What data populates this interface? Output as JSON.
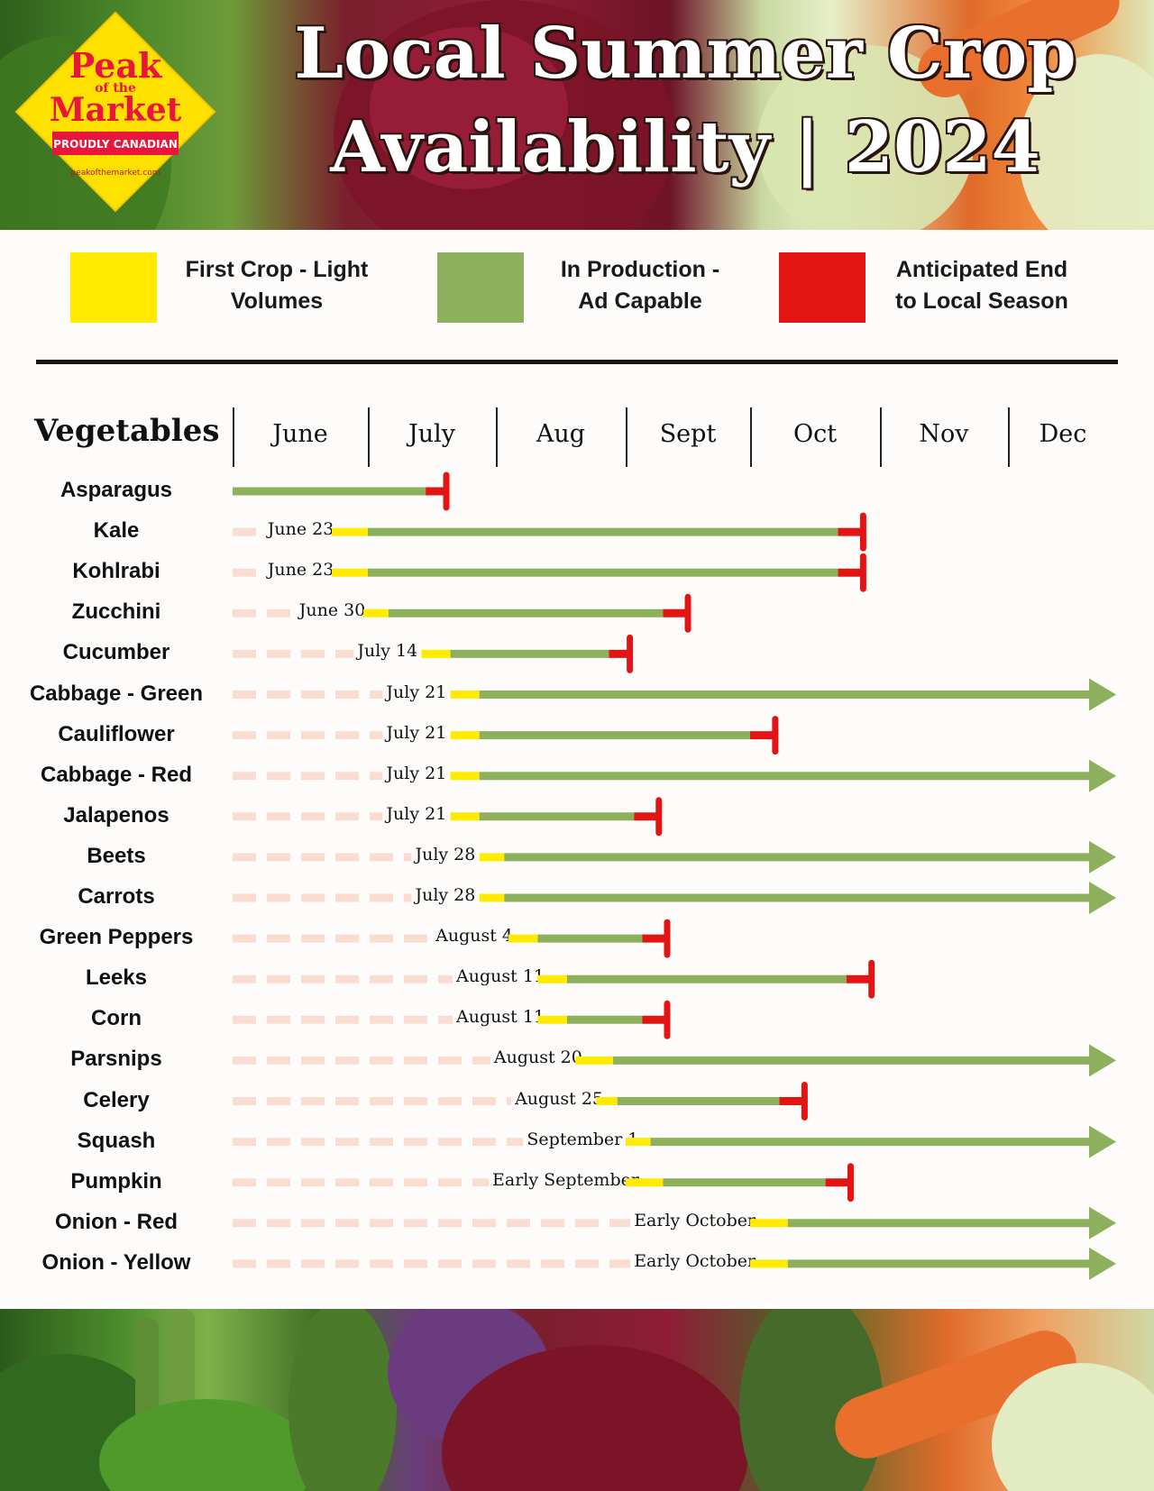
{
  "header": {
    "title_line1": "Local Summer Crop",
    "title_line2": "Availability | 2024"
  },
  "logo": {
    "line1": "Peak",
    "line2": "of the",
    "line3": "Market",
    "banner": "PROUDLY CANADIAN",
    "url": "peakofthemarket.com"
  },
  "legend": [
    {
      "label_line1": "First Crop - Light",
      "label_line2": "Volumes",
      "color": "#ffea00"
    },
    {
      "label_line1": "In Production -",
      "label_line2": "Ad Capable",
      "color": "#8db05c"
    },
    {
      "label_line1": "Anticipated End",
      "label_line2": "to Local Season",
      "color": "#e31414"
    }
  ],
  "colors": {
    "first_crop": "#ffea00",
    "in_production": "#8db05c",
    "end_season": "#e31414",
    "dash": "#fbdcd0"
  },
  "chart_data": {
    "type": "table",
    "row_header": "Vegetables",
    "months": [
      "June",
      "July",
      "Aug",
      "Sept",
      "Oct",
      "Nov",
      "Dec"
    ],
    "rows": [
      {
        "name": "Asparagus",
        "start_label": "",
        "first_crop": null,
        "production": [
          "June 1",
          "July 15"
        ],
        "end": "July 20"
      },
      {
        "name": "Kale",
        "start_label": "June 23",
        "first_crop": [
          "June 23",
          "July 1"
        ],
        "production": [
          "July 1",
          "Oct 22"
        ],
        "end": "Oct 28"
      },
      {
        "name": "Kohlrabi",
        "start_label": "June 23",
        "first_crop": [
          "June 23",
          "July 1"
        ],
        "production": [
          "July 1",
          "Oct 22"
        ],
        "end": "Oct 28"
      },
      {
        "name": "Zucchini",
        "start_label": "June 30",
        "first_crop": [
          "June 30",
          "July 6"
        ],
        "production": [
          "July 6",
          "Sept 10"
        ],
        "end": "Sept 16"
      },
      {
        "name": "Cucumber",
        "start_label": "July 14",
        "first_crop": [
          "July 14",
          "July 21"
        ],
        "production": [
          "July 21",
          "Aug 28"
        ],
        "end": "Sept 2"
      },
      {
        "name": "Cabbage - Green",
        "start_label": "July 21",
        "first_crop": [
          "July 21",
          "July 28"
        ],
        "production": [
          "July 28",
          "Dec 31"
        ],
        "end": "continues"
      },
      {
        "name": "Cauliflower",
        "start_label": "July 21",
        "first_crop": [
          "July 21",
          "July 28"
        ],
        "production": [
          "July 28",
          "Oct 1"
        ],
        "end": "Oct 7"
      },
      {
        "name": "Cabbage - Red",
        "start_label": "July 21",
        "first_crop": [
          "July 21",
          "July 28"
        ],
        "production": [
          "July 28",
          "Dec 31"
        ],
        "end": "continues"
      },
      {
        "name": "Jalapenos",
        "start_label": "July 21",
        "first_crop": [
          "July 21",
          "July 28"
        ],
        "production": [
          "July 28",
          "Sept 3"
        ],
        "end": "Sept 9"
      },
      {
        "name": "Beets",
        "start_label": "July 28",
        "first_crop": [
          "July 28",
          "Aug 3"
        ],
        "production": [
          "Aug 3",
          "Dec 31"
        ],
        "end": "continues"
      },
      {
        "name": "Carrots",
        "start_label": "July 28",
        "first_crop": [
          "July 28",
          "Aug 3"
        ],
        "production": [
          "Aug 3",
          "Dec 31"
        ],
        "end": "continues"
      },
      {
        "name": "Green Peppers",
        "start_label": "August 4",
        "first_crop": [
          "Aug 4",
          "Aug 11"
        ],
        "production": [
          "Aug 11",
          "Sept 5"
        ],
        "end": "Sept 11"
      },
      {
        "name": "Leeks",
        "start_label": "August 11",
        "first_crop": [
          "Aug 11",
          "Aug 18"
        ],
        "production": [
          "Aug 18",
          "Oct 24"
        ],
        "end": "Oct 30"
      },
      {
        "name": "Corn",
        "start_label": "August 11",
        "first_crop": [
          "Aug 11",
          "Aug 18"
        ],
        "production": [
          "Aug 18",
          "Sept 5"
        ],
        "end": "Sept 11"
      },
      {
        "name": "Parsnips",
        "start_label": "August 20",
        "first_crop": [
          "Aug 20",
          "Aug 29"
        ],
        "production": [
          "Aug 29",
          "Dec 31"
        ],
        "end": "continues"
      },
      {
        "name": "Celery",
        "start_label": "August 25",
        "first_crop": [
          "Aug 25",
          "Aug 30"
        ],
        "production": [
          "Aug 30",
          "Oct 8"
        ],
        "end": "Oct 14"
      },
      {
        "name": "Squash",
        "start_label": "September 1",
        "first_crop": [
          "Sept 1",
          "Sept 7"
        ],
        "production": [
          "Sept 7",
          "Dec 31"
        ],
        "end": "continues"
      },
      {
        "name": "Pumpkin",
        "start_label": "Early September",
        "first_crop": [
          "Sept 1",
          "Sept 10"
        ],
        "production": [
          "Sept 10",
          "Oct 19"
        ],
        "end": "Oct 25"
      },
      {
        "name": "Onion - Red",
        "start_label": "Early October",
        "first_crop": [
          "Oct 1",
          "Oct 10"
        ],
        "production": [
          "Oct 10",
          "Dec 31"
        ],
        "end": "continues"
      },
      {
        "name": "Onion - Yellow",
        "start_label": "Early October",
        "first_crop": [
          "Oct 1",
          "Oct 10"
        ],
        "production": [
          "Oct 10",
          "Dec 31"
        ],
        "end": "continues"
      }
    ]
  }
}
